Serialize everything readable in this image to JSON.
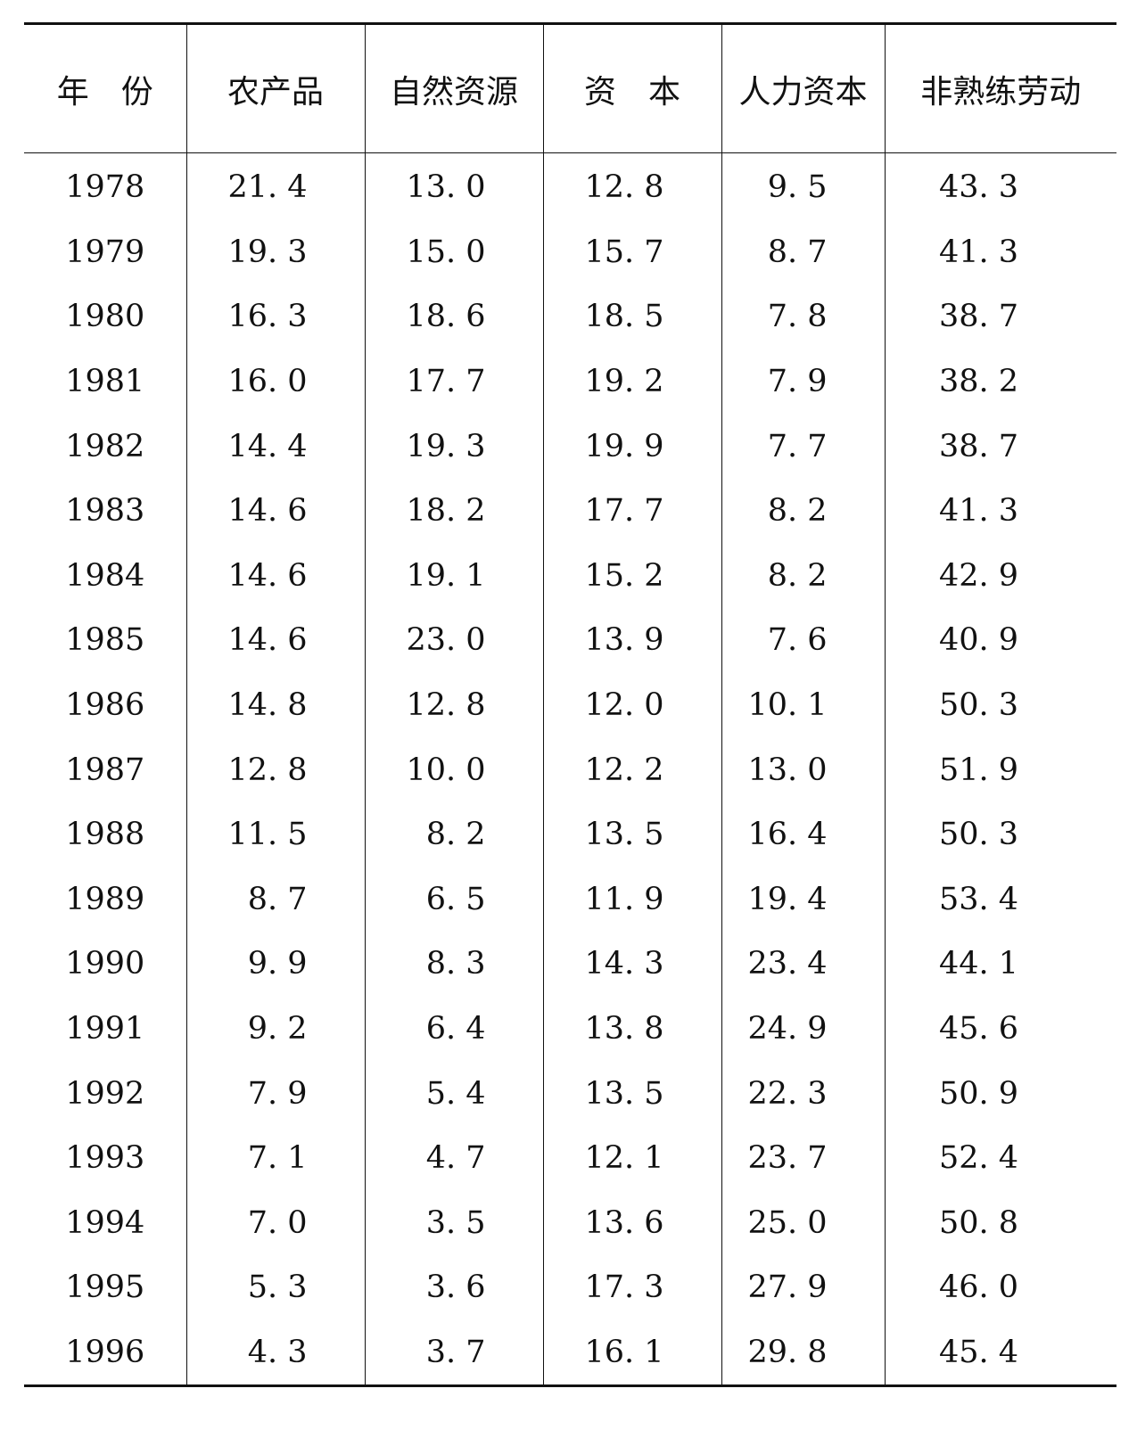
{
  "table": {
    "headers": [
      "年　份",
      "农产品",
      "自然资源",
      "资　本",
      "人力资本",
      "非熟练劳动"
    ],
    "rows": [
      [
        "1978",
        "21. 4",
        "13. 0",
        "12. 8",
        "9. 5",
        "43. 3"
      ],
      [
        "1979",
        "19. 3",
        "15. 0",
        "15. 7",
        "8. 7",
        "41. 3"
      ],
      [
        "1980",
        "16. 3",
        "18. 6",
        "18. 5",
        "7. 8",
        "38. 7"
      ],
      [
        "1981",
        "16. 0",
        "17. 7",
        "19. 2",
        "7. 9",
        "38. 2"
      ],
      [
        "1982",
        "14. 4",
        "19. 3",
        "19. 9",
        "7. 7",
        "38. 7"
      ],
      [
        "1983",
        "14. 6",
        "18. 2",
        "17. 7",
        "8. 2",
        "41. 3"
      ],
      [
        "1984",
        "14. 6",
        "19. 1",
        "15. 2",
        "8. 2",
        "42. 9"
      ],
      [
        "1985",
        "14. 6",
        "23. 0",
        "13. 9",
        "7. 6",
        "40. 9"
      ],
      [
        "1986",
        "14. 8",
        "12. 8",
        "12. 0",
        "10. 1",
        "50. 3"
      ],
      [
        "1987",
        "12. 8",
        "10. 0",
        "12. 2",
        "13. 0",
        "51. 9"
      ],
      [
        "1988",
        "11. 5",
        "8. 2",
        "13. 5",
        "16. 4",
        "50. 3"
      ],
      [
        "1989",
        "8. 7",
        "6. 5",
        "11. 9",
        "19. 4",
        "53. 4"
      ],
      [
        "1990",
        "9. 9",
        "8. 3",
        "14. 3",
        "23. 4",
        "44. 1"
      ],
      [
        "1991",
        "9. 2",
        "6. 4",
        "13. 8",
        "24. 9",
        "45. 6"
      ],
      [
        "1992",
        "7. 9",
        "5. 4",
        "13. 5",
        "22. 3",
        "50. 9"
      ],
      [
        "1993",
        "7. 1",
        "4. 7",
        "12. 1",
        "23. 7",
        "52. 4"
      ],
      [
        "1994",
        "7. 0",
        "3. 5",
        "13. 6",
        "25. 0",
        "50. 8"
      ],
      [
        "1995",
        "5. 3",
        "3. 6",
        "17. 3",
        "27. 9",
        "46. 0"
      ],
      [
        "1996",
        "4. 3",
        "3. 7",
        "16. 1",
        "29. 8",
        "45. 4"
      ]
    ]
  }
}
